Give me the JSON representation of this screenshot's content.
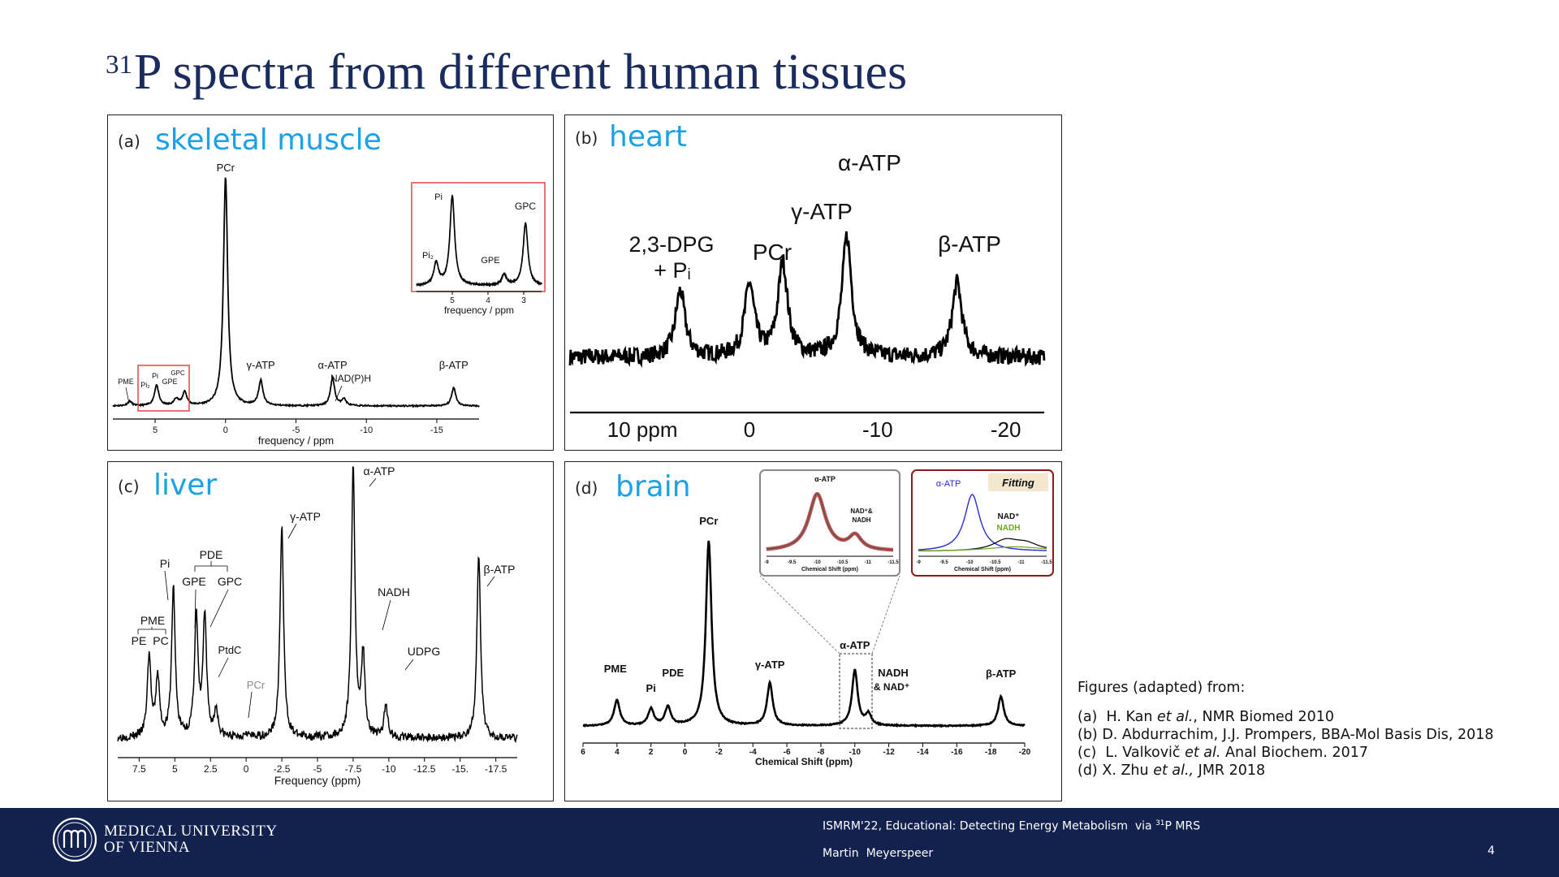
{
  "title": {
    "superscript": "31",
    "text": "P spectra from different human tissues"
  },
  "panels": {
    "a": {
      "letter": "(a)",
      "name": "skeletal muscle"
    },
    "b": {
      "letter": "(b)",
      "name": "heart"
    },
    "c": {
      "letter": "(c)",
      "name": "liver"
    },
    "d": {
      "letter": "(d)",
      "name": "brain"
    }
  },
  "references": {
    "heading": "Figures (adapted) from:",
    "a": {
      "prefix": "(a)  H. Kan ",
      "italic": "et al.",
      "suffix": ", NMR Biomed 2010"
    },
    "b": {
      "text": "(b) D. Abdurrachim, J.J. Prompers, BBA-Mol Basis Dis, 2018"
    },
    "c": {
      "prefix": "(c)  L. Valkovič ",
      "italic": "et al.",
      "suffix": " Anal Biochem. 2017"
    },
    "d": {
      "prefix": "(d) X. Zhu ",
      "italic": "et al.,",
      "suffix": " JMR 2018"
    }
  },
  "footer": {
    "university_line1": "MEDICAL UNIVERSITY",
    "university_line2": "OF VIENNA",
    "conference_prefix": "ISMRM'22, Educational: Detecting Energy Metabolism  via ",
    "conference_sup": "31",
    "conference_suffix": "P MRS",
    "author": "Martin  Meyerspeer",
    "page": "4"
  },
  "colors": {
    "title": "#1a2b5e",
    "accent": "#1da1e6",
    "footer_bg": "#13214f",
    "inset_frame": "#e0393e"
  },
  "chart_data": [
    {
      "id": "a",
      "type": "line",
      "title": "skeletal muscle",
      "xlabel": "frequency / ppm",
      "xlim": [
        8,
        -18
      ],
      "xticks": [
        5,
        0,
        -5,
        -10,
        -15
      ],
      "xticklabels": [
        "5",
        "0",
        "-5",
        "-10",
        "-15"
      ],
      "peaks": [
        {
          "label": "PME",
          "ppm": 6.8,
          "height": 0.02
        },
        {
          "label": "Pi",
          "ppm": 4.9,
          "height": 0.09
        },
        {
          "label": "GPE",
          "ppm": 3.5,
          "height": 0.03
        },
        {
          "label": "GPC",
          "ppm": 2.9,
          "height": 0.06
        },
        {
          "label": "PCr",
          "ppm": 0,
          "height": 1.0
        },
        {
          "label": "γ-ATP",
          "ppm": -2.5,
          "height": 0.11
        },
        {
          "label": "α-ATP",
          "ppm": -7.6,
          "height": 0.12
        },
        {
          "label": "NAD(P)H",
          "ppm": -8.4,
          "height": 0.03
        },
        {
          "label": "β-ATP",
          "ppm": -16.2,
          "height": 0.08
        }
      ],
      "annotation_labels": [
        "PME",
        "Pi₂",
        "Pi",
        "GPC",
        "GPE",
        "PCr",
        "γ-ATP",
        "α-ATP",
        "NAD(P)H",
        "β-ATP"
      ],
      "inset": {
        "xlabel": "frequency / ppm",
        "xlim": [
          6,
          2.5
        ],
        "xticks": [
          5,
          4,
          3
        ],
        "xticklabels": [
          "5",
          "4",
          "3"
        ],
        "peaks": [
          {
            "label": "Pi₂",
            "ppm": 5.45,
            "height": 0.25
          },
          {
            "label": "Pi",
            "ppm": 5.0,
            "height": 1.0
          },
          {
            "label": "GPE",
            "ppm": 3.55,
            "height": 0.12
          },
          {
            "label": "GPC",
            "ppm": 2.95,
            "height": 0.7
          }
        ]
      }
    },
    {
      "id": "b",
      "type": "line",
      "title": "heart",
      "xlim": [
        14,
        -23
      ],
      "xticks": [
        0,
        -10,
        -20
      ],
      "xticklabels": [
        "0",
        "-10",
        "-20"
      ],
      "xtick_first_label": "10 ppm",
      "peaks": [
        {
          "label": "2,3-DPG + Pi",
          "ppm": 5.4,
          "height": 0.55
        },
        {
          "label": "PCr",
          "ppm": 0,
          "height": 0.6
        },
        {
          "label": "γ-ATP",
          "ppm": -2.6,
          "height": 0.78
        },
        {
          "label": "α-ATP",
          "ppm": -7.6,
          "height": 1.0
        },
        {
          "label": "β-ATP",
          "ppm": -16.2,
          "height": 0.62
        }
      ]
    },
    {
      "id": "c",
      "type": "line",
      "title": "liver",
      "xlabel": "Frequency (ppm)",
      "xlim": [
        9,
        -19
      ],
      "xticks": [
        7.5,
        5,
        2.5,
        0,
        -2.5,
        -5,
        -7.5,
        -10,
        -12.5,
        -15,
        -17.5
      ],
      "xticklabels": [
        "7.5",
        "5",
        "2.5",
        "0",
        "-2.5",
        "-5",
        "-7.5",
        "-10",
        "-12.5",
        "-15.",
        "-17.5"
      ],
      "peaks": [
        {
          "label": "PE",
          "ppm": 6.8,
          "height": 0.3
        },
        {
          "label": "PC",
          "ppm": 6.2,
          "height": 0.22
        },
        {
          "label": "Pi",
          "ppm": 5.1,
          "height": 0.55
        },
        {
          "label": "GPE",
          "ppm": 3.5,
          "height": 0.44
        },
        {
          "label": "GPC",
          "ppm": 2.9,
          "height": 0.44
        },
        {
          "label": "PtdC",
          "ppm": 2.1,
          "height": 0.1
        },
        {
          "label": "PCr",
          "ppm": 0,
          "height": 0.02
        },
        {
          "label": "γ-ATP",
          "ppm": -2.5,
          "height": 0.78
        },
        {
          "label": "α-ATP",
          "ppm": -7.5,
          "height": 1.0
        },
        {
          "label": "NADH",
          "ppm": -8.2,
          "height": 0.3
        },
        {
          "label": "UDPG",
          "ppm": -9.8,
          "height": 0.12
        },
        {
          "label": "β-ATP",
          "ppm": -16.3,
          "height": 0.68
        }
      ],
      "annotation_labels": [
        "Pi",
        "PDE",
        "GPE",
        "GPC",
        "PME",
        "PE",
        "PC",
        "PtdC",
        "PCr",
        "γ-ATP",
        "α-ATP",
        "NADH",
        "UDPG",
        "β-ATP"
      ]
    },
    {
      "id": "d",
      "type": "line",
      "title": "brain",
      "xlabel": "Chemical Shift (ppm)",
      "xlim": [
        6,
        -20
      ],
      "xticks": [
        6,
        4,
        2,
        0,
        -2,
        -4,
        -6,
        -8,
        -10,
        -12,
        -14,
        -16,
        -18,
        -20
      ],
      "xticklabels": [
        "6",
        "4",
        "2",
        "0",
        "-2",
        "-4",
        "-6",
        "-8",
        "-10",
        "-12",
        "-14",
        "-16",
        "-18",
        "-20"
      ],
      "peaks": [
        {
          "label": "PME",
          "ppm": 4.0,
          "height": 0.14
        },
        {
          "label": "Pi",
          "ppm": 2.0,
          "height": 0.09
        },
        {
          "label": "PDE",
          "ppm": 1.0,
          "height": 0.1
        },
        {
          "label": "PCr",
          "ppm": -1.4,
          "height": 1.0
        },
        {
          "label": "γ-ATP",
          "ppm": -5.0,
          "height": 0.23
        },
        {
          "label": "α-ATP",
          "ppm": -10.0,
          "height": 0.3
        },
        {
          "label": "NADH & NAD⁺",
          "ppm": -10.8,
          "height": 0.06
        },
        {
          "label": "β-ATP",
          "ppm": -18.6,
          "height": 0.16
        }
      ],
      "inset_left": {
        "labels": [
          "α-ATP",
          "NAD⁺&",
          "NADH"
        ],
        "xlabel": "Chemical Shift (ppm)",
        "xlim": [
          -9,
          -11.5
        ],
        "xticklabels": [
          "-9",
          "-9.5",
          "-10",
          "-10.5",
          "-11",
          "-11.5"
        ]
      },
      "inset_right": {
        "labels": [
          "α-ATP",
          "Fitting",
          "NAD⁺",
          "NADH"
        ],
        "xlabel": "Chemical Shift (ppm)",
        "xlim": [
          -9,
          -11.5
        ],
        "xticklabels": [
          "-9",
          "-9.5",
          "-10",
          "-10.5",
          "-11",
          "-11.5"
        ]
      }
    }
  ]
}
